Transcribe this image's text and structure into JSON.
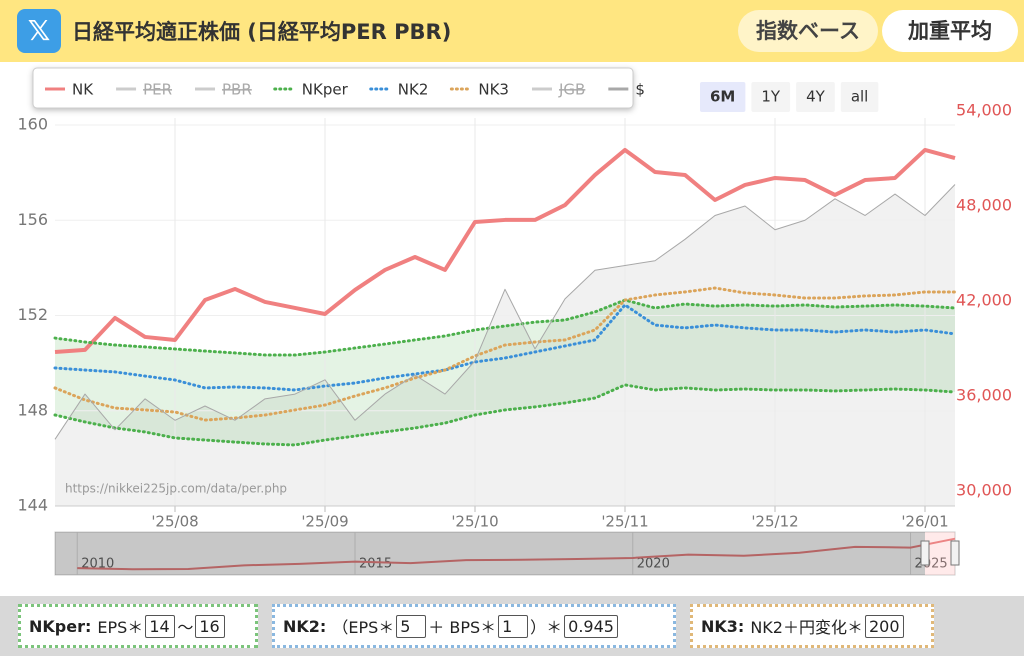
{
  "header": {
    "title": "日経平均適正株価 (日経平均PER PBR)",
    "buttons": [
      "指数ベース",
      "加重平均"
    ]
  },
  "chart_data": {
    "type": "line",
    "categories": [
      null,
      null,
      null,
      null,
      "'25/08",
      null,
      null,
      null,
      null,
      "'25/09",
      null,
      null,
      null,
      null,
      "'25/10",
      null,
      null,
      null,
      null,
      "'25/11",
      null,
      null,
      null,
      null,
      "'25/12",
      null,
      null,
      null,
      null,
      "'26/01",
      null
    ],
    "ylim": [
      144,
      160
    ],
    "yticks": [
      144,
      148,
      152,
      156,
      160
    ],
    "y2lim": [
      30000,
      54000
    ],
    "y2ticks": [
      {
        "value": 30000,
        "label": "30,000"
      },
      {
        "value": 36000,
        "label": "36,000"
      },
      {
        "value": 42000,
        "label": "42,000"
      },
      {
        "value": 48000,
        "label": "48,000"
      },
      {
        "value": 54000,
        "label": "54,000"
      }
    ],
    "grid": true,
    "range_buttons": [
      "6M",
      "1Y",
      "4Y",
      "all"
    ],
    "selected_range": "6M",
    "source": "https://nikkei225jp.com/data/per.php",
    "series": [
      {
        "name": "NK",
        "color": "#f08080",
        "style": "solid",
        "axis": "y2",
        "values": [
          38780,
          38910,
          40930,
          39730,
          39540,
          42060,
          42760,
          41940,
          41560,
          41180,
          42700,
          43960,
          44780,
          43960,
          46990,
          47120,
          47120,
          48060,
          49960,
          51540,
          50150,
          49960,
          48380,
          49330,
          49770,
          49640,
          48700,
          49640,
          49770,
          51540,
          51030
        ]
      },
      {
        "name": "PER",
        "color": "#bbbbbb",
        "style": "solid",
        "hidden": true
      },
      {
        "name": "PBR",
        "color": "#bbbbbb",
        "style": "solid",
        "hidden": true
      },
      {
        "name": "NKper",
        "color": "#4cb04c",
        "style": "dotted",
        "axis": "y2",
        "values": [
          39660,
          39410,
          39220,
          39100,
          38970,
          38840,
          38720,
          38590,
          38590,
          38780,
          39030,
          39280,
          39540,
          39790,
          40170,
          40420,
          40670,
          40800,
          41310,
          42060,
          41560,
          41810,
          41680,
          41750,
          41680,
          41750,
          41620,
          41680,
          41750,
          41680,
          41560
        ],
        "lower": [
          34800,
          34360,
          33980,
          33730,
          33350,
          33220,
          33090,
          32970,
          32910,
          33220,
          33470,
          33730,
          33980,
          34290,
          34800,
          35120,
          35310,
          35560,
          35870,
          36700,
          36380,
          36510,
          36380,
          36440,
          36380,
          36380,
          36320,
          36380,
          36440,
          36380,
          36250
        ]
      },
      {
        "name": "NK2",
        "color": "#3a8fd8",
        "style": "dotted",
        "axis": "y2",
        "values": [
          37770,
          37640,
          37520,
          37260,
          37010,
          36510,
          36570,
          36510,
          36380,
          36630,
          36820,
          37140,
          37390,
          37640,
          38150,
          38400,
          38780,
          39160,
          39540,
          41750,
          40480,
          40300,
          40480,
          40300,
          40170,
          40170,
          40040,
          40170,
          40040,
          40170,
          39920
        ]
      },
      {
        "name": "NK3",
        "color": "#dba45a",
        "style": "dotted",
        "axis": "y2",
        "values": [
          36510,
          35750,
          35240,
          35120,
          34990,
          34480,
          34610,
          34800,
          35120,
          35430,
          36000,
          36510,
          37140,
          37640,
          38530,
          39220,
          39410,
          39540,
          40170,
          42060,
          42380,
          42570,
          42820,
          42510,
          42380,
          42190,
          42190,
          42320,
          42380,
          42570,
          42570
        ]
      },
      {
        "name": "JGB",
        "color": "#bbbbbb",
        "style": "solid",
        "hidden": true
      },
      {
        "name": "$",
        "color": "#a8a8a8",
        "style": "solid",
        "axis": "y",
        "values": [
          146.8,
          148.7,
          147.2,
          148.5,
          147.6,
          148.2,
          147.6,
          148.5,
          148.7,
          149.3,
          147.6,
          148.7,
          149.5,
          148.7,
          150.1,
          153.1,
          150.6,
          152.7,
          153.9,
          154.1,
          154.3,
          155.2,
          156.2,
          156.6,
          155.6,
          156.0,
          156.9,
          156.2,
          157.1,
          156.2,
          157.5
        ]
      }
    ],
    "navigator": {
      "x": [
        2010,
        2011,
        2012,
        2013,
        2014,
        2015,
        2016,
        2017,
        2018,
        2019,
        2020,
        2021,
        2022,
        2023,
        2024,
        2025,
        2025.8
      ],
      "values": [
        10200,
        8700,
        9000,
        14000,
        16000,
        19000,
        17000,
        21000,
        21500,
        22500,
        24000,
        28500,
        27000,
        31000,
        39000,
        38000,
        50000
      ],
      "xlim": [
        2009.6,
        2025.8
      ],
      "ylim": [
        5000,
        55000
      ],
      "xticks": [
        2010,
        2015,
        2020,
        2025
      ]
    }
  },
  "controls": [
    {
      "label": "NKper:",
      "parts": [
        "EPS＊",
        14,
        "〜",
        16
      ]
    },
    {
      "label": "NK2:",
      "parts": [
        "（EPS＊",
        5,
        "＋ BPS＊",
        1,
        "）＊",
        0.945
      ]
    },
    {
      "label": "NK3:",
      "parts": [
        "NK2＋円変化＊",
        200
      ]
    }
  ]
}
